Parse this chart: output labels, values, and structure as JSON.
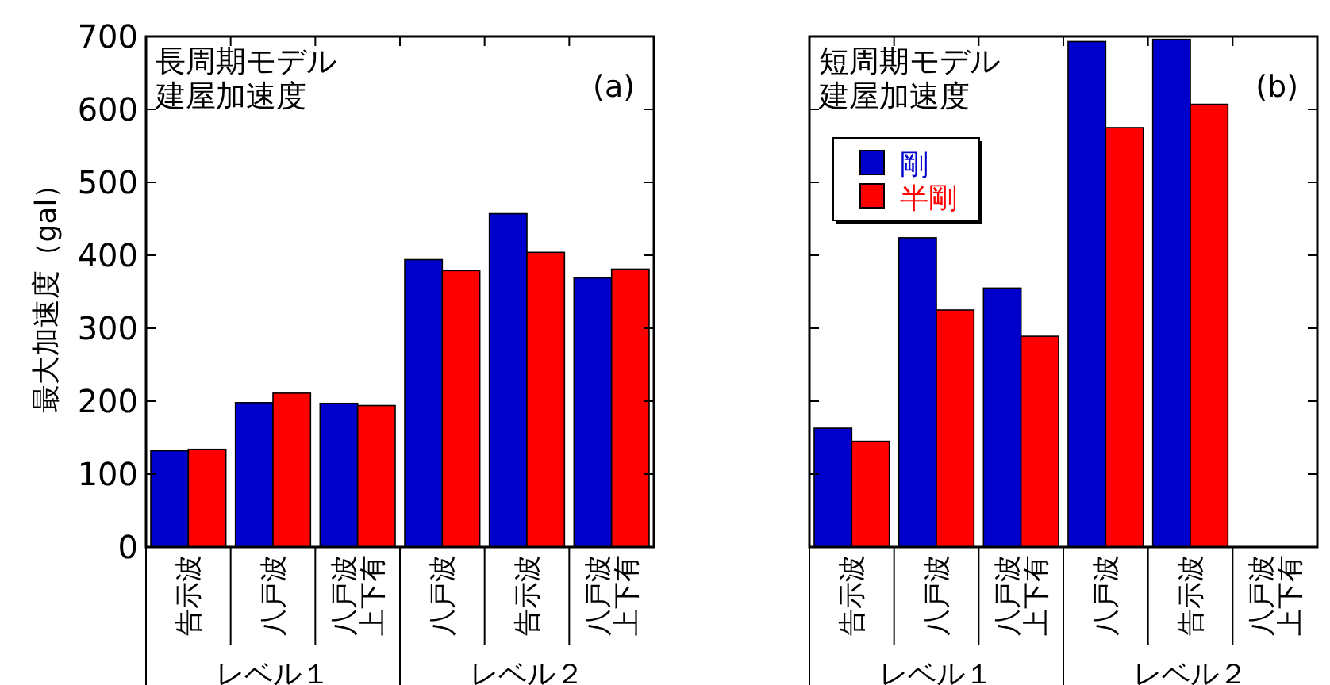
{
  "chart_data": [
    {
      "type": "bar",
      "title": "長周期モデル建屋加速度",
      "ylabel": "最大加速度（gal）",
      "categories": [
        "告示波",
        "八戸波",
        "八戸波上下有",
        "八戸波",
        "告示波",
        "八戸波上下有"
      ],
      "series": [
        {
          "color": "#0000cc",
          "values": [
            132,
            198,
            197,
            394,
            457,
            369
          ]
        },
        {
          "color": "#ff0000",
          "values": [
            134,
            211,
            194,
            379,
            404,
            381
          ]
        }
      ],
      "ylim": [
        0,
        700
      ],
      "yticks": [
        0,
        100,
        200,
        300,
        400,
        500,
        600,
        700
      ],
      "annotations": [
        "(a)",
        "レベル１",
        "レベル２"
      ],
      "legend": false
    },
    {
      "type": "bar",
      "title": "短周期モデル建屋加速度",
      "categories": [
        "告示波",
        "八戸波",
        "八戸波上下有",
        "八戸波",
        "告示波",
        "八戸波上下有"
      ],
      "series": [
        {
          "name": "剛",
          "color": "#0000cc",
          "values": [
            163,
            424,
            355,
            693,
            696,
            null
          ]
        },
        {
          "name": "半剛",
          "color": "#ff0000",
          "values": [
            145,
            325,
            289,
            575,
            607,
            null
          ]
        }
      ],
      "ylim": [
        0,
        700
      ],
      "yticks": [
        0,
        100,
        200,
        300,
        400,
        500,
        600,
        700
      ],
      "tick_labels": "x",
      "annotations": [
        "(b)",
        "レベル１",
        "レベル２"
      ],
      "legend": "top left"
    }
  ]
}
